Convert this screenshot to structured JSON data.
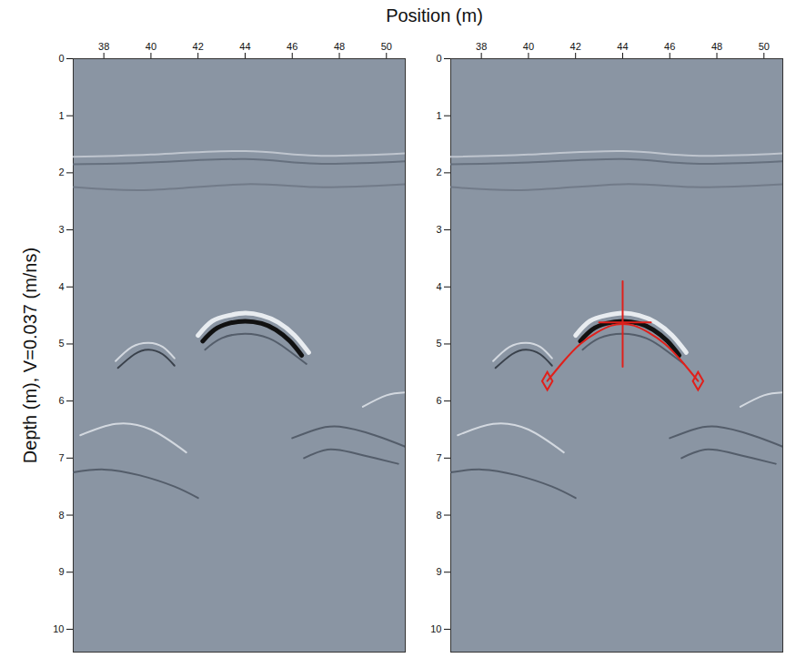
{
  "chart_data": {
    "type": "line",
    "xlabel": "Position (m)",
    "ylabel": "Depth (m), V=0.037 (m/ns)",
    "xlim": [
      36.7,
      50.8
    ],
    "ylim": [
      0,
      10.4
    ],
    "xticks": [
      38,
      40,
      42,
      44,
      46,
      48,
      50
    ],
    "yticks": [
      0,
      1,
      2,
      3,
      4,
      5,
      6,
      7,
      8,
      9,
      10
    ],
    "panels": [
      {
        "reflectors": [
          {
            "color": "#c8ced6",
            "line_style": "thin",
            "x": [
              36.7,
              40,
              44,
              47,
              50.8
            ],
            "y": [
              1.72,
              1.68,
              1.62,
              1.7,
              1.66
            ]
          },
          {
            "color": "#5f6a78",
            "line_style": "thin",
            "x": [
              36.7,
              40,
              44,
              47,
              50.8
            ],
            "y": [
              1.85,
              1.82,
              1.76,
              1.84,
              1.8
            ]
          },
          {
            "color": "#6d7785",
            "line_style": "thin",
            "x": [
              36.7,
              40,
              44,
              47,
              50.8
            ],
            "y": [
              2.25,
              2.3,
              2.2,
              2.25,
              2.2
            ]
          },
          {
            "color": "#e8ecf0",
            "line_style": "thick",
            "x": [
              42.0,
              42.6,
              43.3,
              44,
              44.7,
              45.4,
              46.1,
              46.7
            ],
            "y": [
              4.85,
              4.6,
              4.5,
              4.46,
              4.5,
              4.62,
              4.85,
              5.15
            ]
          },
          {
            "color": "#111111",
            "line_style": "thick",
            "x": [
              42.2,
              42.7,
              43.3,
              44,
              44.7,
              45.3,
              45.9,
              46.4
            ],
            "y": [
              4.95,
              4.75,
              4.64,
              4.6,
              4.64,
              4.75,
              4.95,
              5.2
            ]
          },
          {
            "color": "#4a5360",
            "line_style": "thin",
            "x": [
              42.3,
              43,
              44,
              45,
              45.8,
              46.6
            ],
            "y": [
              5.1,
              4.9,
              4.82,
              4.9,
              5.1,
              5.35
            ]
          },
          {
            "color": "#dfe4ea",
            "line_style": "thin",
            "x": [
              38.5,
              39.2,
              39.9,
              40.5,
              41
            ],
            "y": [
              5.3,
              5.05,
              4.98,
              5.05,
              5.25
            ]
          },
          {
            "color": "#2c333c",
            "line_style": "thin",
            "x": [
              38.6,
              39.3,
              39.9,
              40.5,
              41
            ],
            "y": [
              5.42,
              5.18,
              5.1,
              5.18,
              5.38
            ]
          },
          {
            "color": "#4a5360",
            "line_style": "thin",
            "x": [
              36.7,
              38,
              39.5,
              41,
              42
            ],
            "y": [
              7.25,
              7.2,
              7.3,
              7.5,
              7.7
            ]
          },
          {
            "color": "#4a5360",
            "line_style": "thin",
            "x": [
              46,
              47,
              48,
              49.5,
              50.8
            ],
            "y": [
              6.65,
              6.5,
              6.45,
              6.6,
              6.8
            ]
          },
          {
            "color": "#4a5360",
            "line_style": "thin",
            "x": [
              46.5,
              47.5,
              48.5,
              49.5,
              50.5
            ],
            "y": [
              7.0,
              6.85,
              6.9,
              7.0,
              7.1
            ]
          },
          {
            "color": "#dfe4ea",
            "line_style": "thin",
            "x": [
              37,
              38.5,
              40,
              41.5
            ],
            "y": [
              6.6,
              6.4,
              6.5,
              6.9
            ]
          },
          {
            "color": "#dfe4ea",
            "line_style": "thin",
            "x": [
              49,
              50,
              50.8
            ],
            "y": [
              6.1,
              5.9,
              5.85
            ]
          }
        ]
      },
      {
        "reflectors": [
          {
            "color": "#c8ced6",
            "line_style": "thin",
            "x": [
              36.7,
              40,
              44,
              47,
              50.8
            ],
            "y": [
              1.72,
              1.68,
              1.62,
              1.7,
              1.66
            ]
          },
          {
            "color": "#5f6a78",
            "line_style": "thin",
            "x": [
              36.7,
              40,
              44,
              47,
              50.8
            ],
            "y": [
              1.85,
              1.82,
              1.76,
              1.84,
              1.8
            ]
          },
          {
            "color": "#6d7785",
            "line_style": "thin",
            "x": [
              36.7,
              40,
              44,
              47,
              50.8
            ],
            "y": [
              2.25,
              2.3,
              2.2,
              2.25,
              2.2
            ]
          },
          {
            "color": "#e8ecf0",
            "line_style": "thick",
            "x": [
              42.0,
              42.6,
              43.3,
              44,
              44.7,
              45.4,
              46.1,
              46.7
            ],
            "y": [
              4.85,
              4.6,
              4.5,
              4.46,
              4.5,
              4.62,
              4.85,
              5.15
            ]
          },
          {
            "color": "#111111",
            "line_style": "thick",
            "x": [
              42.2,
              42.7,
              43.3,
              44,
              44.7,
              45.3,
              45.9,
              46.4
            ],
            "y": [
              4.95,
              4.75,
              4.64,
              4.6,
              4.64,
              4.75,
              4.95,
              5.2
            ]
          },
          {
            "color": "#4a5360",
            "line_style": "thin",
            "x": [
              42.3,
              43,
              44,
              45,
              45.8,
              46.6
            ],
            "y": [
              5.1,
              4.9,
              4.82,
              4.9,
              5.1,
              5.35
            ]
          },
          {
            "color": "#dfe4ea",
            "line_style": "thin",
            "x": [
              38.5,
              39.2,
              39.9,
              40.5,
              41
            ],
            "y": [
              5.3,
              5.05,
              4.98,
              5.05,
              5.25
            ]
          },
          {
            "color": "#2c333c",
            "line_style": "thin",
            "x": [
              38.6,
              39.3,
              39.9,
              40.5,
              41
            ],
            "y": [
              5.42,
              5.18,
              5.1,
              5.18,
              5.38
            ]
          },
          {
            "color": "#4a5360",
            "line_style": "thin",
            "x": [
              36.7,
              38,
              39.5,
              41,
              42
            ],
            "y": [
              7.25,
              7.2,
              7.3,
              7.5,
              7.7
            ]
          },
          {
            "color": "#4a5360",
            "line_style": "thin",
            "x": [
              46,
              47,
              48,
              49.5,
              50.8
            ],
            "y": [
              6.65,
              6.5,
              6.45,
              6.6,
              6.8
            ]
          },
          {
            "color": "#4a5360",
            "line_style": "thin",
            "x": [
              46.5,
              47.5,
              48.5,
              49.5,
              50.5
            ],
            "y": [
              7.0,
              6.85,
              6.9,
              7.0,
              7.1
            ]
          },
          {
            "color": "#dfe4ea",
            "line_style": "thin",
            "x": [
              37,
              38.5,
              40,
              41.5
            ],
            "y": [
              6.6,
              6.4,
              6.5,
              6.9
            ]
          },
          {
            "color": "#dfe4ea",
            "line_style": "thin",
            "x": [
              49,
              50,
              50.8
            ],
            "y": [
              6.1,
              5.9,
              5.85
            ]
          }
        ],
        "fit": {
          "color": "#e0201b",
          "marker": "diamond",
          "x": [
            40.8,
            41.5,
            42.2,
            42.9,
            43.5,
            44,
            44.5,
            45.1,
            45.8,
            46.5,
            47.2
          ],
          "y": [
            5.65,
            5.3,
            5.0,
            4.8,
            4.68,
            4.65,
            4.68,
            4.8,
            5.0,
            5.3,
            5.65
          ],
          "cross": {
            "x": 44,
            "y": 4.62,
            "x_span": [
              43.0,
              45.2
            ],
            "y_span": [
              3.9,
              5.4
            ]
          }
        }
      }
    ]
  }
}
